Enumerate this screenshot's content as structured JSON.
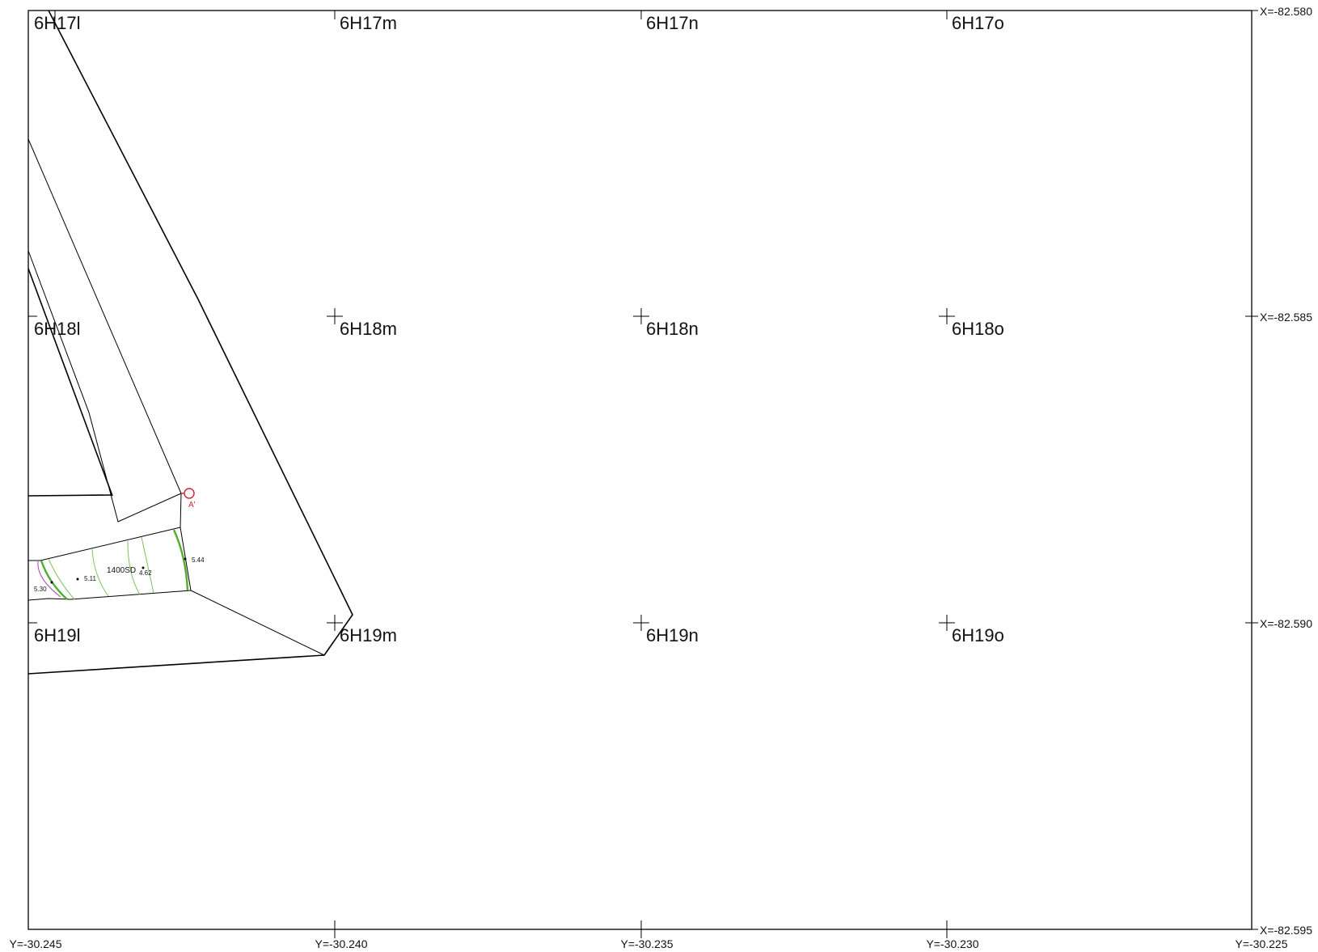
{
  "grid_cells": [
    [
      "6H17l",
      "6H17m",
      "6H17n",
      "6H17o"
    ],
    [
      "6H18l",
      "6H18m",
      "6H18n",
      "6H18o"
    ],
    [
      "6H19l",
      "6H19m",
      "6H19n",
      "6H19o"
    ]
  ],
  "x_coords": [
    "X=-82.580",
    "X=-82.585",
    "X=-82.590",
    "X=-82.595"
  ],
  "y_coords": [
    "Y=-30.245",
    "Y=-30.240",
    "Y=-30.235",
    "Y=-30.230",
    "Y=-30.225"
  ],
  "feature": {
    "name": "1400SD",
    "elevations": {
      "e530": "5.30",
      "e511": "5.11",
      "e462": "4.62",
      "e544": "5.44"
    },
    "section_point": "A'"
  },
  "colors": {
    "contour": "#7cc35a",
    "contour_bold": "#4fae2c",
    "contour_purple": "#a04ab0",
    "section_marker": "#d0202a"
  }
}
